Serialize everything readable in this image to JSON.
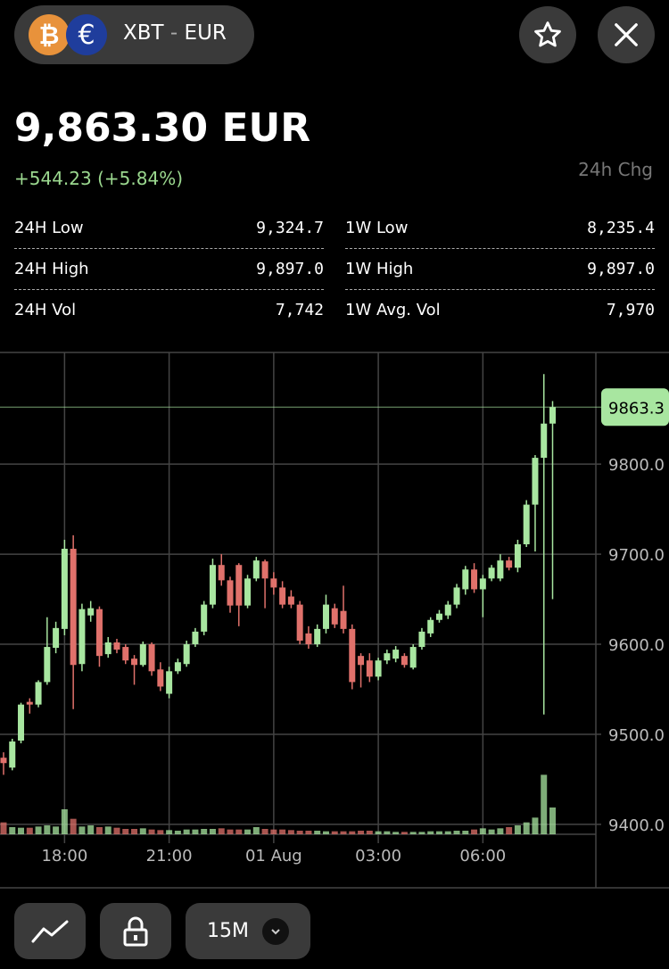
{
  "header": {
    "icons": {
      "base": "₿",
      "quote": "€"
    },
    "base": "XBT",
    "separator": "-",
    "quote": "EUR"
  },
  "price": {
    "value": "9,863.30 EUR",
    "change": "+544.23 (+5.84%)",
    "change_label": "24h Chg"
  },
  "stats": [
    {
      "label": "24H Low",
      "value": "9,324.7"
    },
    {
      "label": "1W Low",
      "value": "8,235.4"
    },
    {
      "label": "24H High",
      "value": "9,897.0"
    },
    {
      "label": "1W High",
      "value": "9,897.0"
    },
    {
      "label": "24H Vol",
      "value": "7,742"
    },
    {
      "label": "1W Avg. Vol",
      "value": "7,970"
    }
  ],
  "toolbar": {
    "interval": "15M"
  },
  "chart_data": {
    "type": "candlestick",
    "categories": [
      null,
      null,
      null,
      null,
      null,
      null,
      null,
      "18:00",
      null,
      null,
      null,
      null,
      null,
      null,
      null,
      null,
      null,
      null,
      null,
      "21:00",
      null,
      null,
      null,
      null,
      null,
      null,
      null,
      null,
      null,
      null,
      null,
      "01 Aug",
      null,
      null,
      null,
      null,
      null,
      null,
      null,
      null,
      null,
      null,
      null,
      "03:00",
      null,
      null,
      null,
      null,
      null,
      null,
      null,
      null,
      null,
      null,
      null,
      "06:00",
      null,
      null,
      null,
      null,
      null,
      null,
      null,
      null
    ],
    "open": [
      9474,
      9463,
      9493,
      9536,
      9533,
      9558,
      9596,
      9617,
      9706,
      9578,
      9632,
      9639,
      9589,
      9602,
      9597,
      9584,
      9577,
      9600,
      9572,
      9545,
      9570,
      9578,
      9600,
      9614,
      9644,
      9688,
      9671,
      9688,
      9643,
      9673,
      9692,
      9673,
      9663,
      9653,
      9644,
      9612,
      9600,
      9617,
      9640,
      9637,
      9617,
      9587,
      9582,
      9564,
      9582,
      9584,
      9587,
      9574,
      9597,
      9612,
      9627,
      9632,
      9644,
      9661,
      9683,
      9661,
      9673,
      9673,
      9693,
      9685,
      9711,
      9755,
      9807,
      9845
    ],
    "high": [
      9480,
      9495,
      9535,
      9540,
      9560,
      9630,
      9625,
      9716,
      9721,
      9645,
      9648,
      9642,
      9608,
      9606,
      9600,
      9588,
      9603,
      9602,
      9580,
      9575,
      9584,
      9604,
      9618,
      9648,
      9695,
      9700,
      9675,
      9690,
      9677,
      9697,
      9694,
      9680,
      9670,
      9660,
      9648,
      9620,
      9622,
      9655,
      9645,
      9665,
      9622,
      9590,
      9590,
      9585,
      9594,
      9598,
      9590,
      9600,
      9618,
      9630,
      9638,
      9648,
      9667,
      9687,
      9690,
      9677,
      9688,
      9700,
      9697,
      9716,
      9760,
      9810,
      9900,
      9870
    ],
    "low": [
      9455,
      9460,
      9490,
      9523,
      9530,
      9555,
      9590,
      9610,
      9528,
      9570,
      9625,
      9575,
      9585,
      9590,
      9578,
      9555,
      9575,
      9565,
      9548,
      9540,
      9567,
      9575,
      9597,
      9610,
      9640,
      9665,
      9635,
      9620,
      9640,
      9670,
      9640,
      9655,
      9640,
      9640,
      9600,
      9595,
      9597,
      9612,
      9618,
      9612,
      9550,
      9552,
      9558,
      9560,
      9578,
      9580,
      9574,
      9572,
      9594,
      9608,
      9624,
      9628,
      9640,
      9655,
      9657,
      9630,
      9670,
      9670,
      9682,
      9680,
      9708,
      9703,
      9522,
      9650
    ],
    "close": [
      9468,
      9492,
      9533,
      9533,
      9558,
      9597,
      9618,
      9706,
      9577,
      9639,
      9640,
      9587,
      9602,
      9594,
      9582,
      9577,
      9600,
      9570,
      9553,
      9570,
      9580,
      9600,
      9614,
      9644,
      9688,
      9671,
      9643,
      9643,
      9673,
      9693,
      9673,
      9663,
      9644,
      9644,
      9604,
      9600,
      9617,
      9644,
      9622,
      9617,
      9558,
      9577,
      9564,
      9582,
      9590,
      9594,
      9577,
      9597,
      9614,
      9627,
      9634,
      9644,
      9663,
      9683,
      9661,
      9673,
      9685,
      9693,
      9685,
      9711,
      9755,
      9807,
      9845,
      9863.3
    ],
    "volume": [
      200,
      120,
      110,
      110,
      130,
      150,
      130,
      420,
      260,
      130,
      150,
      120,
      130,
      110,
      90,
      90,
      100,
      80,
      70,
      70,
      60,
      80,
      80,
      90,
      90,
      100,
      80,
      80,
      80,
      120,
      90,
      80,
      80,
      70,
      60,
      60,
      60,
      50,
      50,
      50,
      50,
      60,
      60,
      50,
      50,
      40,
      40,
      40,
      40,
      50,
      50,
      50,
      60,
      60,
      80,
      100,
      80,
      100,
      120,
      150,
      200,
      280,
      1000,
      450
    ],
    "volume_lim": [
      0,
      1200
    ],
    "up_color": "#a8e6a0",
    "down_color": "#e0716b",
    "ylim": [
      9389,
      9924
    ],
    "yticks": [
      {
        "value": 9400,
        "label": "9400.0"
      },
      {
        "value": 9500,
        "label": "9500.0"
      },
      {
        "value": 9600,
        "label": "9600.0"
      },
      {
        "value": 9700,
        "label": "9700.0"
      },
      {
        "value": 9800,
        "label": "9800.0"
      }
    ],
    "last_price": 9863.3,
    "grid": true
  }
}
